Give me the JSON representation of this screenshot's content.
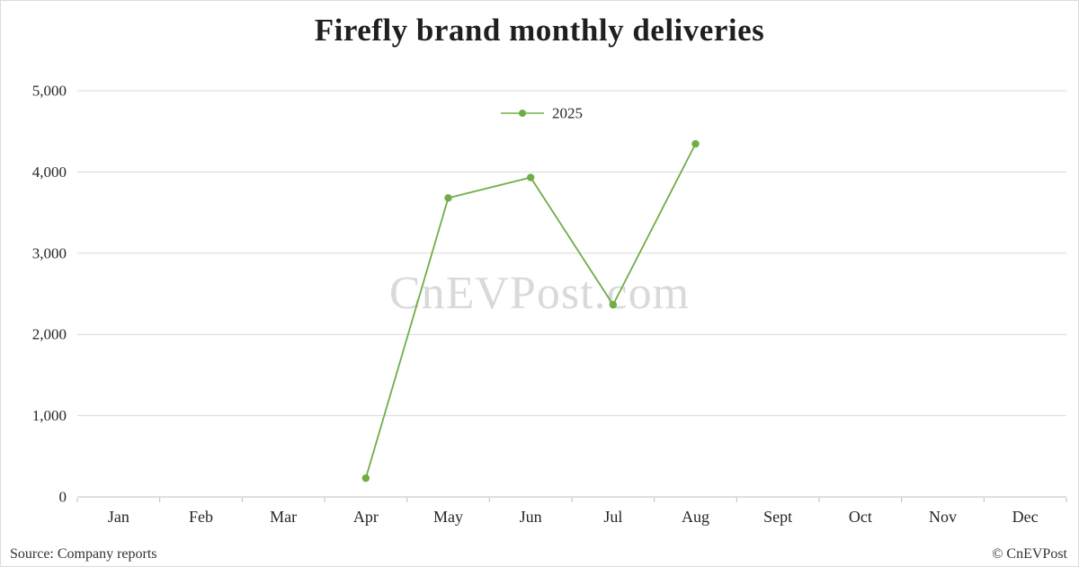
{
  "watermark": "CnEVPost.com",
  "footer": {
    "source": "Source: Company reports",
    "copyright": "© CnEVPost"
  },
  "colors": {
    "line": "#70ad47",
    "grid": "#d9d9d9",
    "axis": "#bfbfbf",
    "axis_text": "#262626",
    "watermark": "#d9d9d9"
  },
  "chart_data": {
    "type": "line",
    "title": "Firefly brand monthly deliveries",
    "categories": [
      "Jan",
      "Feb",
      "Mar",
      "Apr",
      "May",
      "Jun",
      "Jul",
      "Aug",
      "Sept",
      "Oct",
      "Nov",
      "Dec"
    ],
    "series": [
      {
        "name": "2025",
        "color": "#70ad47",
        "values": [
          null,
          null,
          null,
          231,
          3680,
          3932,
          2366,
          4346,
          null,
          null,
          null,
          null
        ]
      }
    ],
    "xlabel": "",
    "ylabel": "",
    "ylim": [
      0,
      5000
    ],
    "ytick_step": 1000,
    "grid": true,
    "legend_position": "top-center"
  }
}
